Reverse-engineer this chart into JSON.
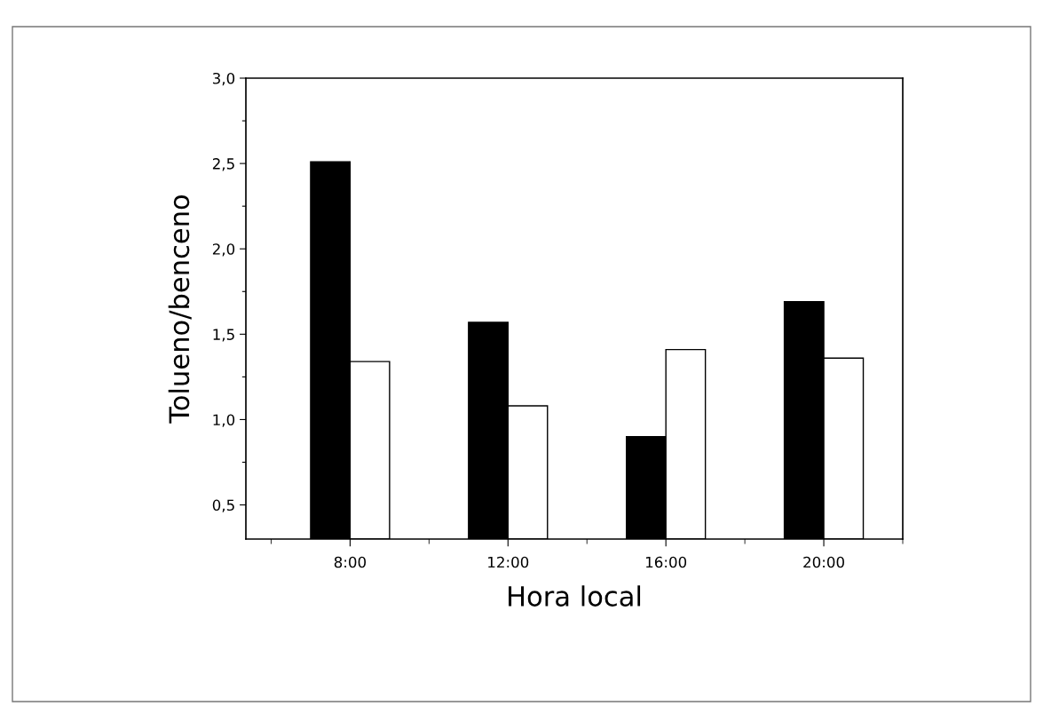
{
  "chart_data": {
    "type": "bar",
    "xlabel": "Hora local",
    "ylabel": "Tolueno/benceno",
    "categories": [
      "8:00",
      "12:00",
      "16:00",
      "20:00"
    ],
    "series": [
      {
        "color": "#000000",
        "values": [
          2.51,
          1.57,
          0.9,
          1.69
        ]
      },
      {
        "color": "#ffffff",
        "values": [
          1.34,
          1.08,
          1.41,
          1.36
        ]
      }
    ],
    "ylim": [
      0.3,
      3.0
    ],
    "yticks": [
      {
        "value": 0.5,
        "label": "0,5"
      },
      {
        "value": 0.75,
        "label": null
      },
      {
        "value": 1.0,
        "label": "1,0"
      },
      {
        "value": 1.25,
        "label": null
      },
      {
        "value": 1.5,
        "label": "1,5"
      },
      {
        "value": 1.75,
        "label": null
      },
      {
        "value": 2.0,
        "label": "2,0"
      },
      {
        "value": 2.25,
        "label": null
      },
      {
        "value": 2.5,
        "label": "2,5"
      },
      {
        "value": 2.75,
        "label": null
      },
      {
        "value": 3.0,
        "label": "3,0"
      }
    ],
    "grid": false
  }
}
